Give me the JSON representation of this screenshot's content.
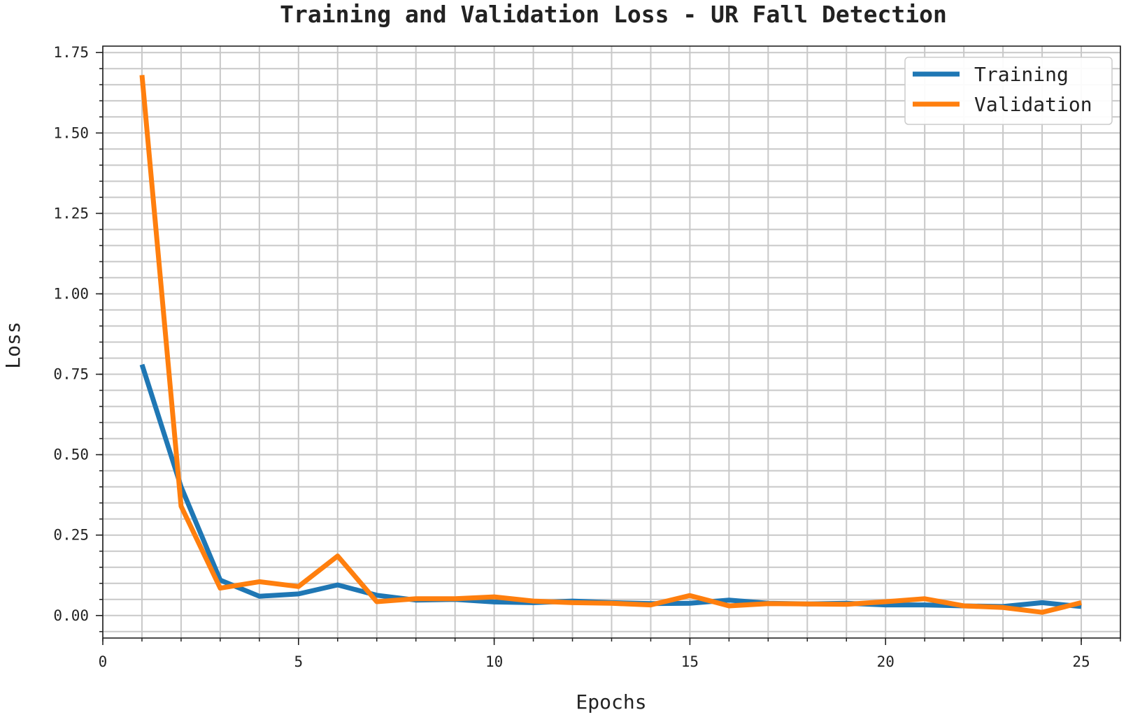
{
  "chart_data": {
    "type": "line",
    "title": "Training and Validation Loss - UR Fall Detection",
    "xlabel": "Epochs",
    "ylabel": "Loss",
    "xlim": [
      0,
      26
    ],
    "ylim": [
      -0.07,
      1.77
    ],
    "xticks": [
      0,
      5,
      10,
      15,
      20,
      25
    ],
    "yticks": [
      0.0,
      0.25,
      0.5,
      0.75,
      1.0,
      1.25,
      1.5,
      1.75
    ],
    "xtick_labels": [
      "0",
      "5",
      "10",
      "15",
      "20",
      "25"
    ],
    "ytick_labels": [
      "0.00",
      "0.25",
      "0.50",
      "0.75",
      "1.00",
      "1.25",
      "1.50",
      "1.75"
    ],
    "grid": true,
    "legend_position": "top-right",
    "x": [
      1,
      2,
      3,
      4,
      5,
      6,
      7,
      8,
      9,
      10,
      11,
      12,
      13,
      14,
      15,
      16,
      17,
      18,
      19,
      20,
      21,
      22,
      23,
      24,
      25
    ],
    "series": [
      {
        "name": "Training",
        "color": "#1f77b4",
        "values": [
          0.78,
          0.4,
          0.11,
          0.06,
          0.067,
          0.095,
          0.063,
          0.048,
          0.05,
          0.042,
          0.04,
          0.045,
          0.04,
          0.037,
          0.038,
          0.048,
          0.038,
          0.036,
          0.038,
          0.033,
          0.033,
          0.03,
          0.028,
          0.04,
          0.028
        ]
      },
      {
        "name": "Validation",
        "color": "#ff7f0e",
        "values": [
          1.68,
          0.34,
          0.085,
          0.105,
          0.09,
          0.185,
          0.043,
          0.052,
          0.052,
          0.058,
          0.045,
          0.04,
          0.038,
          0.033,
          0.062,
          0.03,
          0.037,
          0.036,
          0.035,
          0.043,
          0.052,
          0.03,
          0.025,
          0.01,
          0.04
        ]
      }
    ]
  }
}
